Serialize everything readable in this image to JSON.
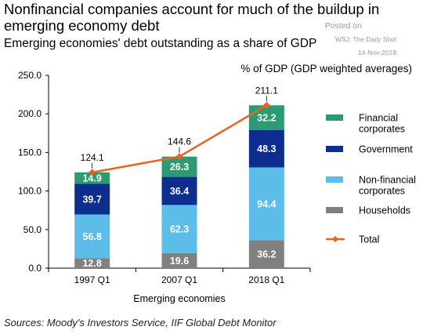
{
  "header": {
    "title": "Nonfinancial companies account for much of the buildup in emerging economy debt",
    "subtitle": "Emerging economies' debt outstanding as a share of GDP",
    "unit_label": "% of GDP (GDP weighted averages)"
  },
  "watermark": {
    "posted_on": "Posted on",
    "source": "WSJ: The Daily Shot",
    "date": "14-Nov-2018"
  },
  "footer": {
    "source": "Sources: Moody's Investors Service, IIF Global Debt Monitor"
  },
  "chart_data": {
    "type": "bar",
    "stacked": true,
    "categories": [
      "1997 Q1",
      "2007 Q1",
      "2018 Q1"
    ],
    "xlabel": "Emerging economies",
    "ylabel": "",
    "ylim": [
      0,
      250
    ],
    "yticks": [
      "0.0",
      "50.0",
      "100.0",
      "150.0",
      "200.0",
      "250.0"
    ],
    "grid": false,
    "legend_position": "right",
    "series": [
      {
        "name": "Households",
        "color": "#808080",
        "values": [
          12.8,
          19.6,
          36.2
        ],
        "labels": [
          "12.8",
          "19.6",
          "36.2"
        ]
      },
      {
        "name": "Non-financial corporates",
        "color": "#5bbde8",
        "values": [
          56.8,
          62.3,
          94.4
        ],
        "labels": [
          "56.8",
          "62.3",
          "94.4"
        ]
      },
      {
        "name": "Government",
        "color": "#0d2e8f",
        "values": [
          39.7,
          36.4,
          48.3
        ],
        "labels": [
          "39.7",
          "36.4",
          "48.3"
        ]
      },
      {
        "name": "Financial corporates",
        "color": "#2e9a72",
        "values": [
          14.9,
          26.3,
          32.2
        ],
        "labels": [
          "14.9",
          "26.3",
          "32.2"
        ]
      }
    ],
    "total": {
      "name": "Total",
      "color": "#e8641e",
      "values": [
        124.1,
        144.6,
        211.1
      ],
      "labels": [
        "124.1",
        "144.6",
        "211.1"
      ]
    },
    "legend": [
      {
        "name": "Financial corporates",
        "color": "#2e9a72",
        "kind": "box"
      },
      {
        "name": "Government",
        "color": "#0d2e8f",
        "kind": "box"
      },
      {
        "name": "Non-financial corporates",
        "color": "#5bbde8",
        "kind": "box"
      },
      {
        "name": "Households",
        "color": "#808080",
        "kind": "box"
      },
      {
        "name": "Total",
        "color": "#e8641e",
        "kind": "line"
      }
    ]
  }
}
